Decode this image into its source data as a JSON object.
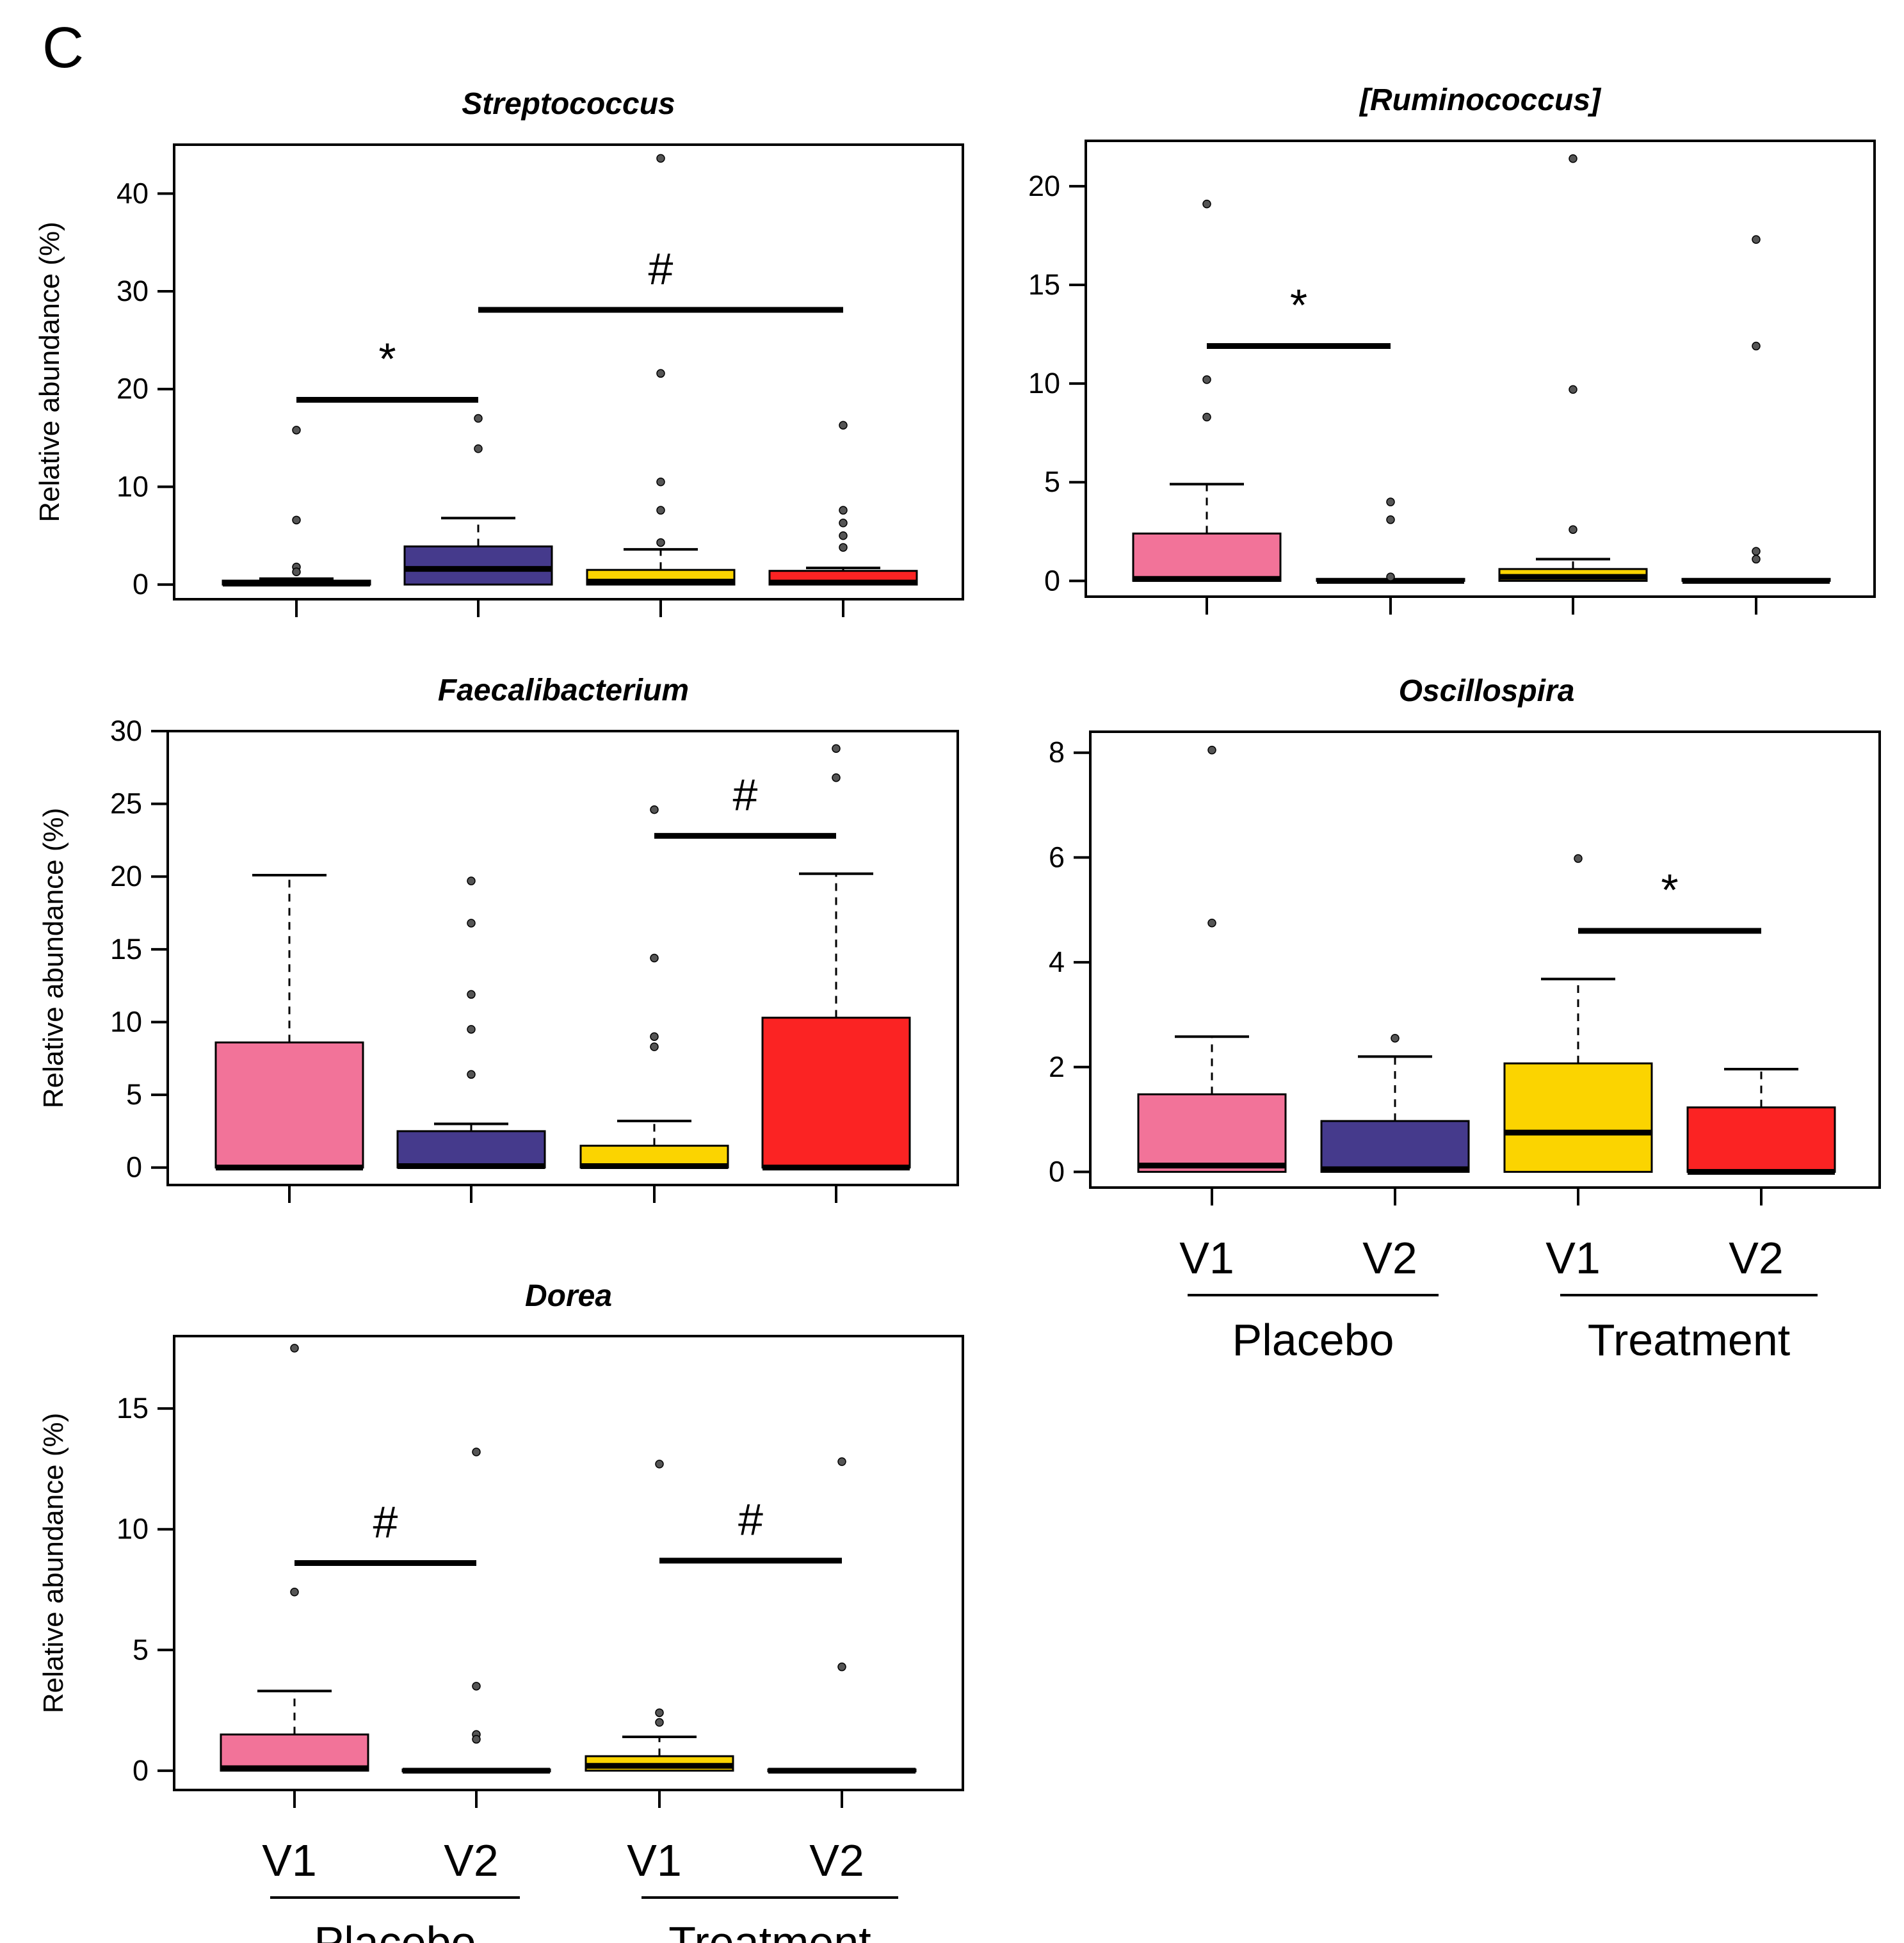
{
  "figure_label": "C",
  "colors": {
    "placebo_v1": "#f27399",
    "placebo_v2": "#453a8c",
    "treatment_v1": "#fbd400",
    "treatment_v2": "#fb2323",
    "ink": "#000000",
    "outlier": "#555555"
  },
  "group_labels": {
    "placebo": "Placebo",
    "treatment": "Treatment"
  },
  "chart_data": [
    {
      "id": "streptococcus",
      "type": "box",
      "title": "Streptococcus",
      "ylabel": "Relative abundance (%)",
      "ylim": [
        -1.5,
        45
      ],
      "yticks": [
        0,
        10,
        20,
        30,
        40
      ],
      "categories": [
        "V1",
        "V2",
        "V1",
        "V2"
      ],
      "show_category_labels": false,
      "groups": [
        {
          "name": "Placebo V1",
          "color_key": "placebo_v1",
          "q1": 0,
          "median": 0.1,
          "q3": 0.4,
          "whisker_low": 0,
          "whisker_high": 0.6,
          "outliers": [
            15.8,
            6.6,
            1.8,
            1.3
          ]
        },
        {
          "name": "Placebo V2",
          "color_key": "placebo_v2",
          "q1": 0,
          "median": 1.6,
          "q3": 3.9,
          "whisker_low": 0,
          "whisker_high": 6.8,
          "outliers": [
            17.0,
            13.9
          ]
        },
        {
          "name": "Treatment V1",
          "color_key": "treatment_v1",
          "q1": 0,
          "median": 0.3,
          "q3": 1.5,
          "whisker_low": 0,
          "whisker_high": 3.6,
          "outliers": [
            43.6,
            21.6,
            10.5,
            7.6,
            4.3
          ]
        },
        {
          "name": "Treatment V2",
          "color_key": "treatment_v2",
          "q1": 0,
          "median": 0.2,
          "q3": 1.4,
          "whisker_low": 0,
          "whisker_high": 1.7,
          "outliers": [
            16.3,
            7.6,
            6.3,
            5.0,
            3.8
          ]
        }
      ],
      "annotations": [
        {
          "label": "*",
          "from": 0,
          "to": 1,
          "y": 18.9
        },
        {
          "label": "#",
          "from": 1,
          "to": 3,
          "y": 28.1
        }
      ]
    },
    {
      "id": "ruminococcus",
      "type": "box",
      "title": "[Ruminococcus]",
      "ylabel": "",
      "ylim": [
        -0.8,
        22.3
      ],
      "yticks": [
        0,
        5,
        10,
        15,
        20
      ],
      "categories": [
        "V1",
        "V2",
        "V1",
        "V2"
      ],
      "show_category_labels": false,
      "groups": [
        {
          "name": "Placebo V1",
          "color_key": "placebo_v1",
          "q1": 0,
          "median": 0.1,
          "q3": 2.4,
          "whisker_low": 0,
          "whisker_high": 4.9,
          "outliers": [
            19.1,
            10.2,
            8.3
          ]
        },
        {
          "name": "Placebo V2",
          "color_key": "placebo_v2",
          "q1": 0,
          "median": 0,
          "q3": 0.1,
          "whisker_low": 0,
          "whisker_high": 0.1,
          "outliers": [
            4.0,
            3.1,
            0.2
          ]
        },
        {
          "name": "Treatment V1",
          "color_key": "treatment_v1",
          "q1": 0,
          "median": 0.2,
          "q3": 0.6,
          "whisker_low": 0,
          "whisker_high": 1.1,
          "outliers": [
            21.4,
            9.7,
            2.6
          ]
        },
        {
          "name": "Treatment V2",
          "color_key": "treatment_v2",
          "q1": 0,
          "median": 0,
          "q3": 0.1,
          "whisker_low": 0,
          "whisker_high": 0.1,
          "outliers": [
            17.3,
            11.9,
            1.5,
            1.1
          ]
        }
      ],
      "annotations": [
        {
          "label": "*",
          "from": 0,
          "to": 1,
          "y": 11.9
        }
      ]
    },
    {
      "id": "faecalibacterium",
      "type": "box",
      "title": "Faecalibacterium",
      "ylabel": "Relative abundance (%)",
      "ylim": [
        -1.2,
        30
      ],
      "yticks": [
        0,
        5,
        10,
        15,
        20,
        25,
        30
      ],
      "categories": [
        "V1",
        "V2",
        "V1",
        "V2"
      ],
      "show_category_labels": false,
      "groups": [
        {
          "name": "Placebo V1",
          "color_key": "placebo_v1",
          "q1": 0,
          "median": 0,
          "q3": 8.6,
          "whisker_low": 0,
          "whisker_high": 20.1,
          "outliers": []
        },
        {
          "name": "Placebo V2",
          "color_key": "placebo_v2",
          "q1": 0,
          "median": 0.1,
          "q3": 2.5,
          "whisker_low": 0,
          "whisker_high": 3.0,
          "outliers": [
            19.7,
            16.8,
            11.9,
            9.5,
            6.4
          ]
        },
        {
          "name": "Treatment V1",
          "color_key": "treatment_v1",
          "q1": 0,
          "median": 0.1,
          "q3": 1.5,
          "whisker_low": 0,
          "whisker_high": 3.2,
          "outliers": [
            24.6,
            14.4,
            9.0,
            8.3
          ]
        },
        {
          "name": "Treatment V2",
          "color_key": "treatment_v2",
          "q1": 0,
          "median": 0,
          "q3": 10.3,
          "whisker_low": 0,
          "whisker_high": 20.2,
          "outliers": [
            28.8,
            26.8
          ]
        }
      ],
      "annotations": [
        {
          "label": "#",
          "from": 2,
          "to": 3,
          "y": 22.8
        }
      ]
    },
    {
      "id": "oscillospira",
      "type": "box",
      "title": "Oscillospira",
      "ylabel": "",
      "ylim": [
        -0.3,
        8.4
      ],
      "yticks": [
        0,
        2,
        4,
        6,
        8
      ],
      "categories": [
        "V1",
        "V2",
        "V1",
        "V2"
      ],
      "show_category_labels": true,
      "groups": [
        {
          "name": "Placebo V1",
          "color_key": "placebo_v1",
          "q1": 0,
          "median": 0.12,
          "q3": 1.48,
          "whisker_low": 0,
          "whisker_high": 2.58,
          "outliers": [
            8.05,
            4.75
          ]
        },
        {
          "name": "Placebo V2",
          "color_key": "placebo_v2",
          "q1": 0,
          "median": 0.05,
          "q3": 0.97,
          "whisker_low": 0,
          "whisker_high": 2.2,
          "outliers": [
            2.55
          ]
        },
        {
          "name": "Treatment V1",
          "color_key": "treatment_v1",
          "q1": 0,
          "median": 0.75,
          "q3": 2.07,
          "whisker_low": 0,
          "whisker_high": 3.68,
          "outliers": [
            5.98
          ]
        },
        {
          "name": "Treatment V2",
          "color_key": "treatment_v2",
          "q1": 0,
          "median": 0,
          "q3": 1.23,
          "whisker_low": 0,
          "whisker_high": 1.96,
          "outliers": []
        }
      ],
      "annotations": [
        {
          "label": "*",
          "from": 2,
          "to": 3,
          "y": 4.6
        }
      ]
    },
    {
      "id": "dorea",
      "type": "box",
      "title": "Dorea",
      "ylabel": "Relative abundance (%)",
      "ylim": [
        -0.8,
        18
      ],
      "yticks": [
        0,
        5,
        10,
        15
      ],
      "categories": [
        "V1",
        "V2",
        "V1",
        "V2"
      ],
      "show_category_labels": true,
      "groups": [
        {
          "name": "Placebo V1",
          "color_key": "placebo_v1",
          "q1": 0,
          "median": 0.1,
          "q3": 1.5,
          "whisker_low": 0,
          "whisker_high": 3.3,
          "outliers": [
            17.5,
            7.4
          ]
        },
        {
          "name": "Placebo V2",
          "color_key": "placebo_v2",
          "q1": 0,
          "median": 0,
          "q3": 0.05,
          "whisker_low": 0,
          "whisker_high": 0.05,
          "outliers": [
            13.2,
            3.5,
            1.5,
            1.3
          ]
        },
        {
          "name": "Treatment V1",
          "color_key": "treatment_v1",
          "q1": 0,
          "median": 0.2,
          "q3": 0.6,
          "whisker_low": 0,
          "whisker_high": 1.4,
          "outliers": [
            12.7,
            2.4,
            2.0
          ]
        },
        {
          "name": "Treatment V2",
          "color_key": "treatment_v2",
          "q1": 0,
          "median": 0,
          "q3": 0.05,
          "whisker_low": 0,
          "whisker_high": 0.05,
          "outliers": [
            12.8,
            4.3
          ]
        }
      ],
      "annotations": [
        {
          "label": "#",
          "from": 0,
          "to": 1,
          "y": 8.6
        },
        {
          "label": "#",
          "from": 2,
          "to": 3,
          "y": 8.7
        }
      ]
    }
  ]
}
